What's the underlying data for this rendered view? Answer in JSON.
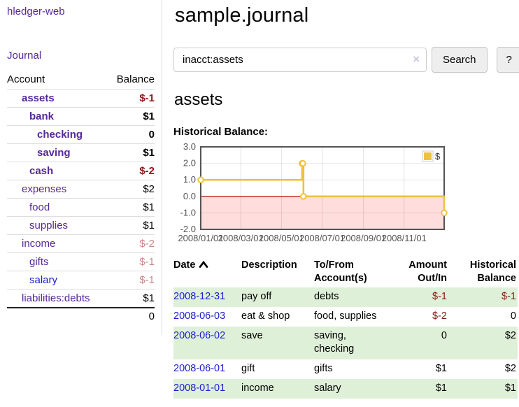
{
  "colors": {
    "link_purple": "#55289b",
    "link_blue": "#1c1cd6",
    "negative": "#8b1717",
    "negative_faded": "#c98787",
    "row_green": "#dff0d8",
    "chart_gold": "#edc240",
    "chart_negative_region": "#ffdddd",
    "chart_zero_line": "#aa0000"
  },
  "sidebar": {
    "app_title": "hledger-web",
    "journal_link": "Journal",
    "accounts_header": {
      "account": "Account",
      "balance": "Balance"
    },
    "accounts": [
      {
        "name": "assets",
        "depth": 1,
        "bold": true,
        "balance": "$-1",
        "balance_class": "neg",
        "link": "purple"
      },
      {
        "name": "bank",
        "depth": 2,
        "bold": true,
        "balance": "$1",
        "balance_class": "pos",
        "link": "purple"
      },
      {
        "name": "checking",
        "depth": 3,
        "bold": true,
        "balance": "0",
        "balance_class": "pos",
        "link": "purple"
      },
      {
        "name": "saving",
        "depth": 3,
        "bold": true,
        "balance": "$1",
        "balance_class": "pos",
        "link": "purple"
      },
      {
        "name": "cash",
        "depth": 2,
        "bold": true,
        "balance": "$-2",
        "balance_class": "neg",
        "link": "purple"
      },
      {
        "name": "expenses",
        "depth": 1,
        "bold": false,
        "balance": "$2",
        "balance_class": "pos",
        "link": "purple"
      },
      {
        "name": "food",
        "depth": 2,
        "bold": false,
        "balance": "$1",
        "balance_class": "pos",
        "link": "purple"
      },
      {
        "name": "supplies",
        "depth": 2,
        "bold": false,
        "balance": "$1",
        "balance_class": "pos",
        "link": "purple"
      },
      {
        "name": "income",
        "depth": 1,
        "bold": false,
        "balance": "$-2",
        "balance_class": "neg-faded",
        "link": "purple"
      },
      {
        "name": "gifts",
        "depth": 2,
        "bold": false,
        "balance": "$-1",
        "balance_class": "neg-faded",
        "link": "purple"
      },
      {
        "name": "salary",
        "depth": 2,
        "bold": false,
        "balance": "$-1",
        "balance_class": "neg-faded",
        "link": "blue"
      },
      {
        "name": "liabilities:debts",
        "depth": 1,
        "bold": false,
        "balance": "$1",
        "balance_class": "pos",
        "link": "purple"
      }
    ],
    "total": "0"
  },
  "main": {
    "title": "sample.journal",
    "search": {
      "value": "inacct:assets",
      "clear_icon": "×",
      "button_label": "Search",
      "help_label": "?"
    },
    "account_heading": "assets",
    "chart_label": "Historical Balance:"
  },
  "chart_data": {
    "type": "line",
    "step": true,
    "series": [
      {
        "name": "$",
        "color": "#edc240",
        "points": [
          [
            "2008-01-01",
            1
          ],
          [
            "2008-06-01",
            2
          ],
          [
            "2008-06-02",
            2
          ],
          [
            "2008-06-03",
            0
          ],
          [
            "2008-12-31",
            -1
          ]
        ]
      }
    ],
    "xlim": [
      "2008-01-01",
      "2008-12-31"
    ],
    "ylim": [
      -2,
      3
    ],
    "y_ticks": [
      "3.0",
      "2.0",
      "1.0",
      "0.0",
      "-1.0",
      "-2.0"
    ],
    "x_ticks": [
      "2008/01/01",
      "2008/03/01",
      "2008/05/01",
      "2008/07/01",
      "2008/09/01",
      "2008/11/01"
    ],
    "grid": true,
    "legend_position": "top-right",
    "legend_label": "$",
    "negative_region_fill": "#ffdddd",
    "zero_line_color": "#aa0000"
  },
  "register": {
    "headers": [
      [
        "Date",
        ""
      ],
      [
        "Description",
        ""
      ],
      [
        "To/From",
        "Account(s)"
      ],
      [
        "Amount",
        "Out/In"
      ],
      [
        "Historical",
        "Balance"
      ]
    ],
    "sort_icon": "chevron-up",
    "rows": [
      {
        "date": "2008-12-31",
        "description": "pay off",
        "accounts": "debts",
        "amount": "$-1",
        "amount_neg": true,
        "balance": "$-1",
        "balance_neg": true
      },
      {
        "date": "2008-06-03",
        "description": "eat & shop",
        "accounts": "food, supplies",
        "amount": "$-2",
        "amount_neg": true,
        "balance": "0",
        "balance_neg": false
      },
      {
        "date": "2008-06-02",
        "description": "save",
        "accounts": "saving, checking",
        "amount": "0",
        "amount_neg": false,
        "balance": "$2",
        "balance_neg": false
      },
      {
        "date": "2008-06-01",
        "description": "gift",
        "accounts": "gifts",
        "amount": "$1",
        "amount_neg": false,
        "balance": "$2",
        "balance_neg": false
      },
      {
        "date": "2008-01-01",
        "description": "income",
        "accounts": "salary",
        "amount": "$1",
        "amount_neg": false,
        "balance": "$1",
        "balance_neg": false
      }
    ]
  }
}
